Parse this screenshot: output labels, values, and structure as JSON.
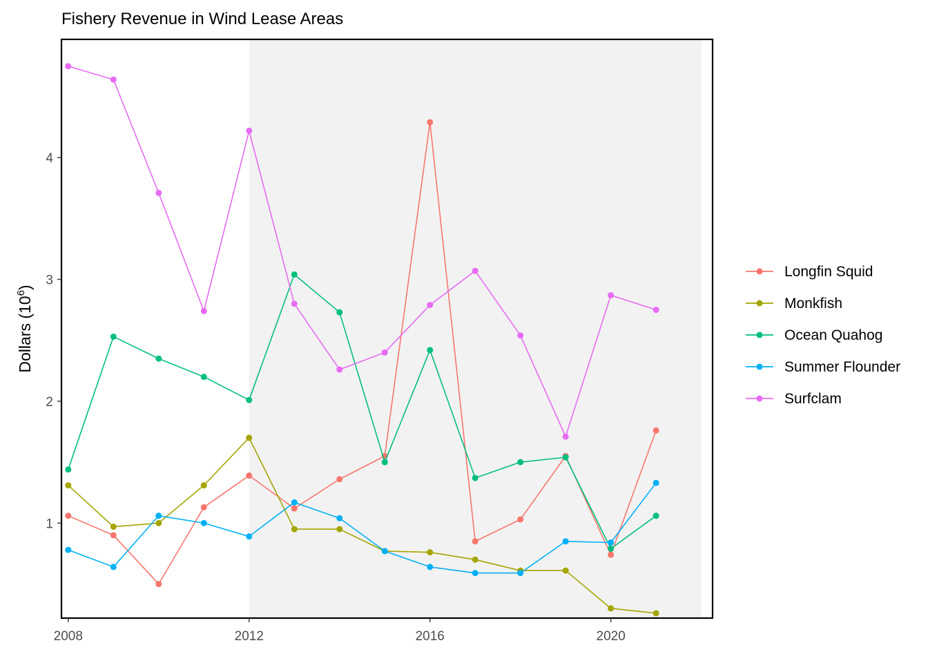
{
  "chart_data": {
    "type": "line",
    "title": "Fishery Revenue in Wind Lease Areas",
    "xlabel": "",
    "ylabel": "Dollars (10",
    "ylabel_sup": "6",
    "ylabel_close": ")",
    "xlim": [
      2007.85,
      2022.25
    ],
    "ylim": [
      0.22,
      4.97
    ],
    "x_ticks": [
      2008,
      2012,
      2016,
      2020
    ],
    "y_ticks": [
      1,
      2,
      3,
      4
    ],
    "x_tick_labels": [
      "2008",
      "2012",
      "2016",
      "2020"
    ],
    "y_tick_labels": [
      "1",
      "2",
      "3",
      "4"
    ],
    "shaded_region": {
      "x_start": 2012,
      "x_end": 2022,
      "color": "#f2f2f2"
    },
    "grid": false,
    "legend_position": "right",
    "x": [
      2008,
      2009,
      2010,
      2011,
      2012,
      2013,
      2014,
      2015,
      2016,
      2017,
      2018,
      2019,
      2020,
      2021
    ],
    "series": [
      {
        "name": "Longfin Squid",
        "color": "#F8766D",
        "values": [
          1.06,
          0.9,
          0.5,
          1.13,
          1.39,
          1.12,
          1.36,
          1.55,
          4.29,
          0.85,
          1.03,
          1.55,
          0.74,
          1.76
        ]
      },
      {
        "name": "Monkfish",
        "color": "#A3A500",
        "values": [
          1.31,
          0.97,
          1.0,
          1.31,
          1.7,
          0.95,
          0.95,
          0.77,
          0.76,
          0.7,
          0.61,
          0.61,
          0.3,
          0.26
        ]
      },
      {
        "name": "Ocean Quahog",
        "color": "#00BF7D",
        "values": [
          1.44,
          2.53,
          2.35,
          2.2,
          2.01,
          3.04,
          2.73,
          1.5,
          2.42,
          1.37,
          1.5,
          1.54,
          0.79,
          1.06
        ]
      },
      {
        "name": "Summer Flounder",
        "color": "#00B0F6",
        "values": [
          0.78,
          0.64,
          1.06,
          1.0,
          0.89,
          1.17,
          1.04,
          0.77,
          0.64,
          0.59,
          0.59,
          0.85,
          0.84,
          1.33
        ]
      },
      {
        "name": "Surfclam",
        "color": "#E76BF3",
        "values": [
          4.75,
          4.64,
          3.71,
          2.74,
          4.22,
          2.8,
          2.26,
          2.4,
          2.79,
          3.07,
          2.54,
          1.71,
          2.87,
          2.75
        ]
      }
    ]
  }
}
